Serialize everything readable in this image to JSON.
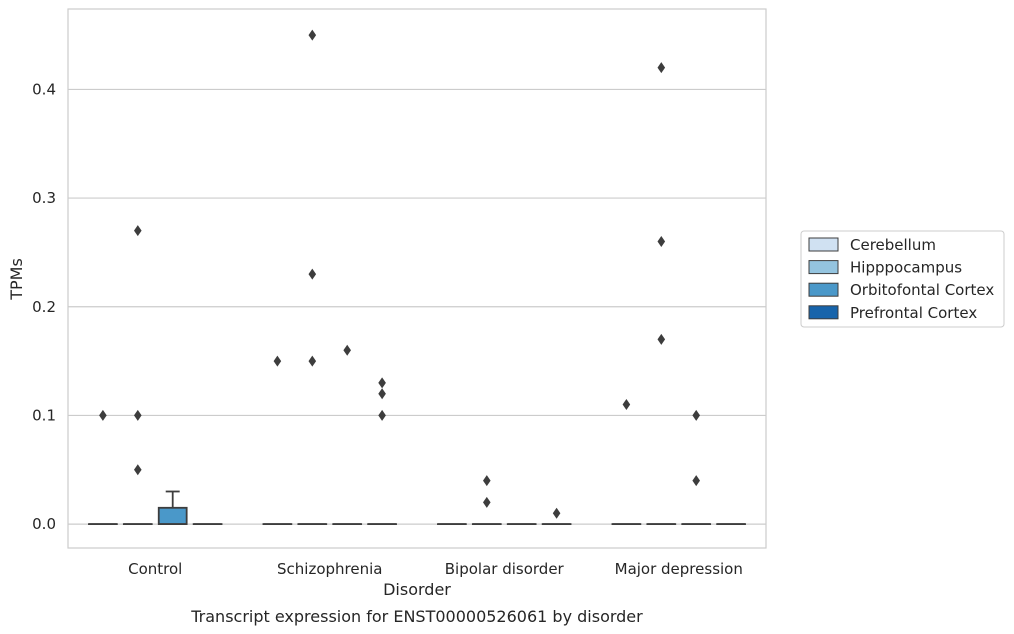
{
  "caption": "Transcript expression for ENST00000526061 by disorder",
  "chart_data": {
    "type": "box",
    "xlabel": "Disorder",
    "ylabel": "TPMs",
    "categories": [
      "Control",
      "Schizophrenia",
      "Bipolar disorder",
      "Major depression"
    ],
    "ylim": [
      -0.022,
      0.474
    ],
    "yticks": [
      0.0,
      0.1,
      0.2,
      0.3,
      0.4
    ],
    "ytick_labels": [
      "0.0",
      "0.1",
      "0.2",
      "0.3",
      "0.4"
    ],
    "grid": true,
    "legend": {
      "placement": "right",
      "entries": [
        "Cerebellum",
        "Hipppocampus",
        "Orbitofontal Cortex",
        "Prefrontal Cortex"
      ]
    },
    "series": [
      {
        "name": "Cerebellum",
        "color": "#d0e1f2",
        "boxes": [
          {
            "category": "Control",
            "q1": 0,
            "median": 0,
            "q3": 0,
            "whisker_low": 0,
            "whisker_high": 0,
            "outliers": [
              0.1
            ]
          },
          {
            "category": "Schizophrenia",
            "q1": 0,
            "median": 0,
            "q3": 0,
            "whisker_low": 0,
            "whisker_high": 0,
            "outliers": [
              0.15
            ]
          },
          {
            "category": "Bipolar disorder",
            "q1": 0,
            "median": 0,
            "q3": 0,
            "whisker_low": 0,
            "whisker_high": 0,
            "outliers": []
          },
          {
            "category": "Major depression",
            "q1": 0,
            "median": 0,
            "q3": 0,
            "whisker_low": 0,
            "whisker_high": 0,
            "outliers": [
              0.11
            ]
          }
        ]
      },
      {
        "name": "Hipppocampus",
        "color": "#94c4df",
        "boxes": [
          {
            "category": "Control",
            "q1": 0,
            "median": 0,
            "q3": 0,
            "whisker_low": 0,
            "whisker_high": 0,
            "outliers": [
              0.27,
              0.1,
              0.05
            ]
          },
          {
            "category": "Schizophrenia",
            "q1": 0,
            "median": 0,
            "q3": 0,
            "whisker_low": 0,
            "whisker_high": 0,
            "outliers": [
              0.45,
              0.23,
              0.15
            ]
          },
          {
            "category": "Bipolar disorder",
            "q1": 0,
            "median": 0,
            "q3": 0,
            "whisker_low": 0,
            "whisker_high": 0,
            "outliers": [
              0.04,
              0.02
            ]
          },
          {
            "category": "Major depression",
            "q1": 0,
            "median": 0,
            "q3": 0,
            "whisker_low": 0,
            "whisker_high": 0,
            "outliers": [
              0.42,
              0.26,
              0.17
            ]
          }
        ]
      },
      {
        "name": "Orbitofontal Cortex",
        "color": "#4a98c9",
        "boxes": [
          {
            "category": "Control",
            "q1": 0,
            "median": 0,
            "q3": 0.015,
            "whisker_low": 0,
            "whisker_high": 0.03,
            "outliers": []
          },
          {
            "category": "Schizophrenia",
            "q1": 0,
            "median": 0,
            "q3": 0,
            "whisker_low": 0,
            "whisker_high": 0,
            "outliers": [
              0.16
            ]
          },
          {
            "category": "Bipolar disorder",
            "q1": 0,
            "median": 0,
            "q3": 0,
            "whisker_low": 0,
            "whisker_high": 0,
            "outliers": []
          },
          {
            "category": "Major depression",
            "q1": 0,
            "median": 0,
            "q3": 0,
            "whisker_low": 0,
            "whisker_high": 0,
            "outliers": [
              0.1,
              0.04
            ]
          }
        ]
      },
      {
        "name": "Prefrontal Cortex",
        "color": "#1764ab",
        "boxes": [
          {
            "category": "Control",
            "q1": 0,
            "median": 0,
            "q3": 0,
            "whisker_low": 0,
            "whisker_high": 0,
            "outliers": []
          },
          {
            "category": "Schizophrenia",
            "q1": 0,
            "median": 0,
            "q3": 0,
            "whisker_low": 0,
            "whisker_high": 0,
            "outliers": [
              0.13,
              0.12,
              0.1
            ]
          },
          {
            "category": "Bipolar disorder",
            "q1": 0,
            "median": 0,
            "q3": 0,
            "whisker_low": 0,
            "whisker_high": 0,
            "outliers": [
              0.01
            ]
          },
          {
            "category": "Major depression",
            "q1": 0,
            "median": 0,
            "q3": 0,
            "whisker_low": 0,
            "whisker_high": 0,
            "outliers": []
          }
        ]
      }
    ]
  }
}
